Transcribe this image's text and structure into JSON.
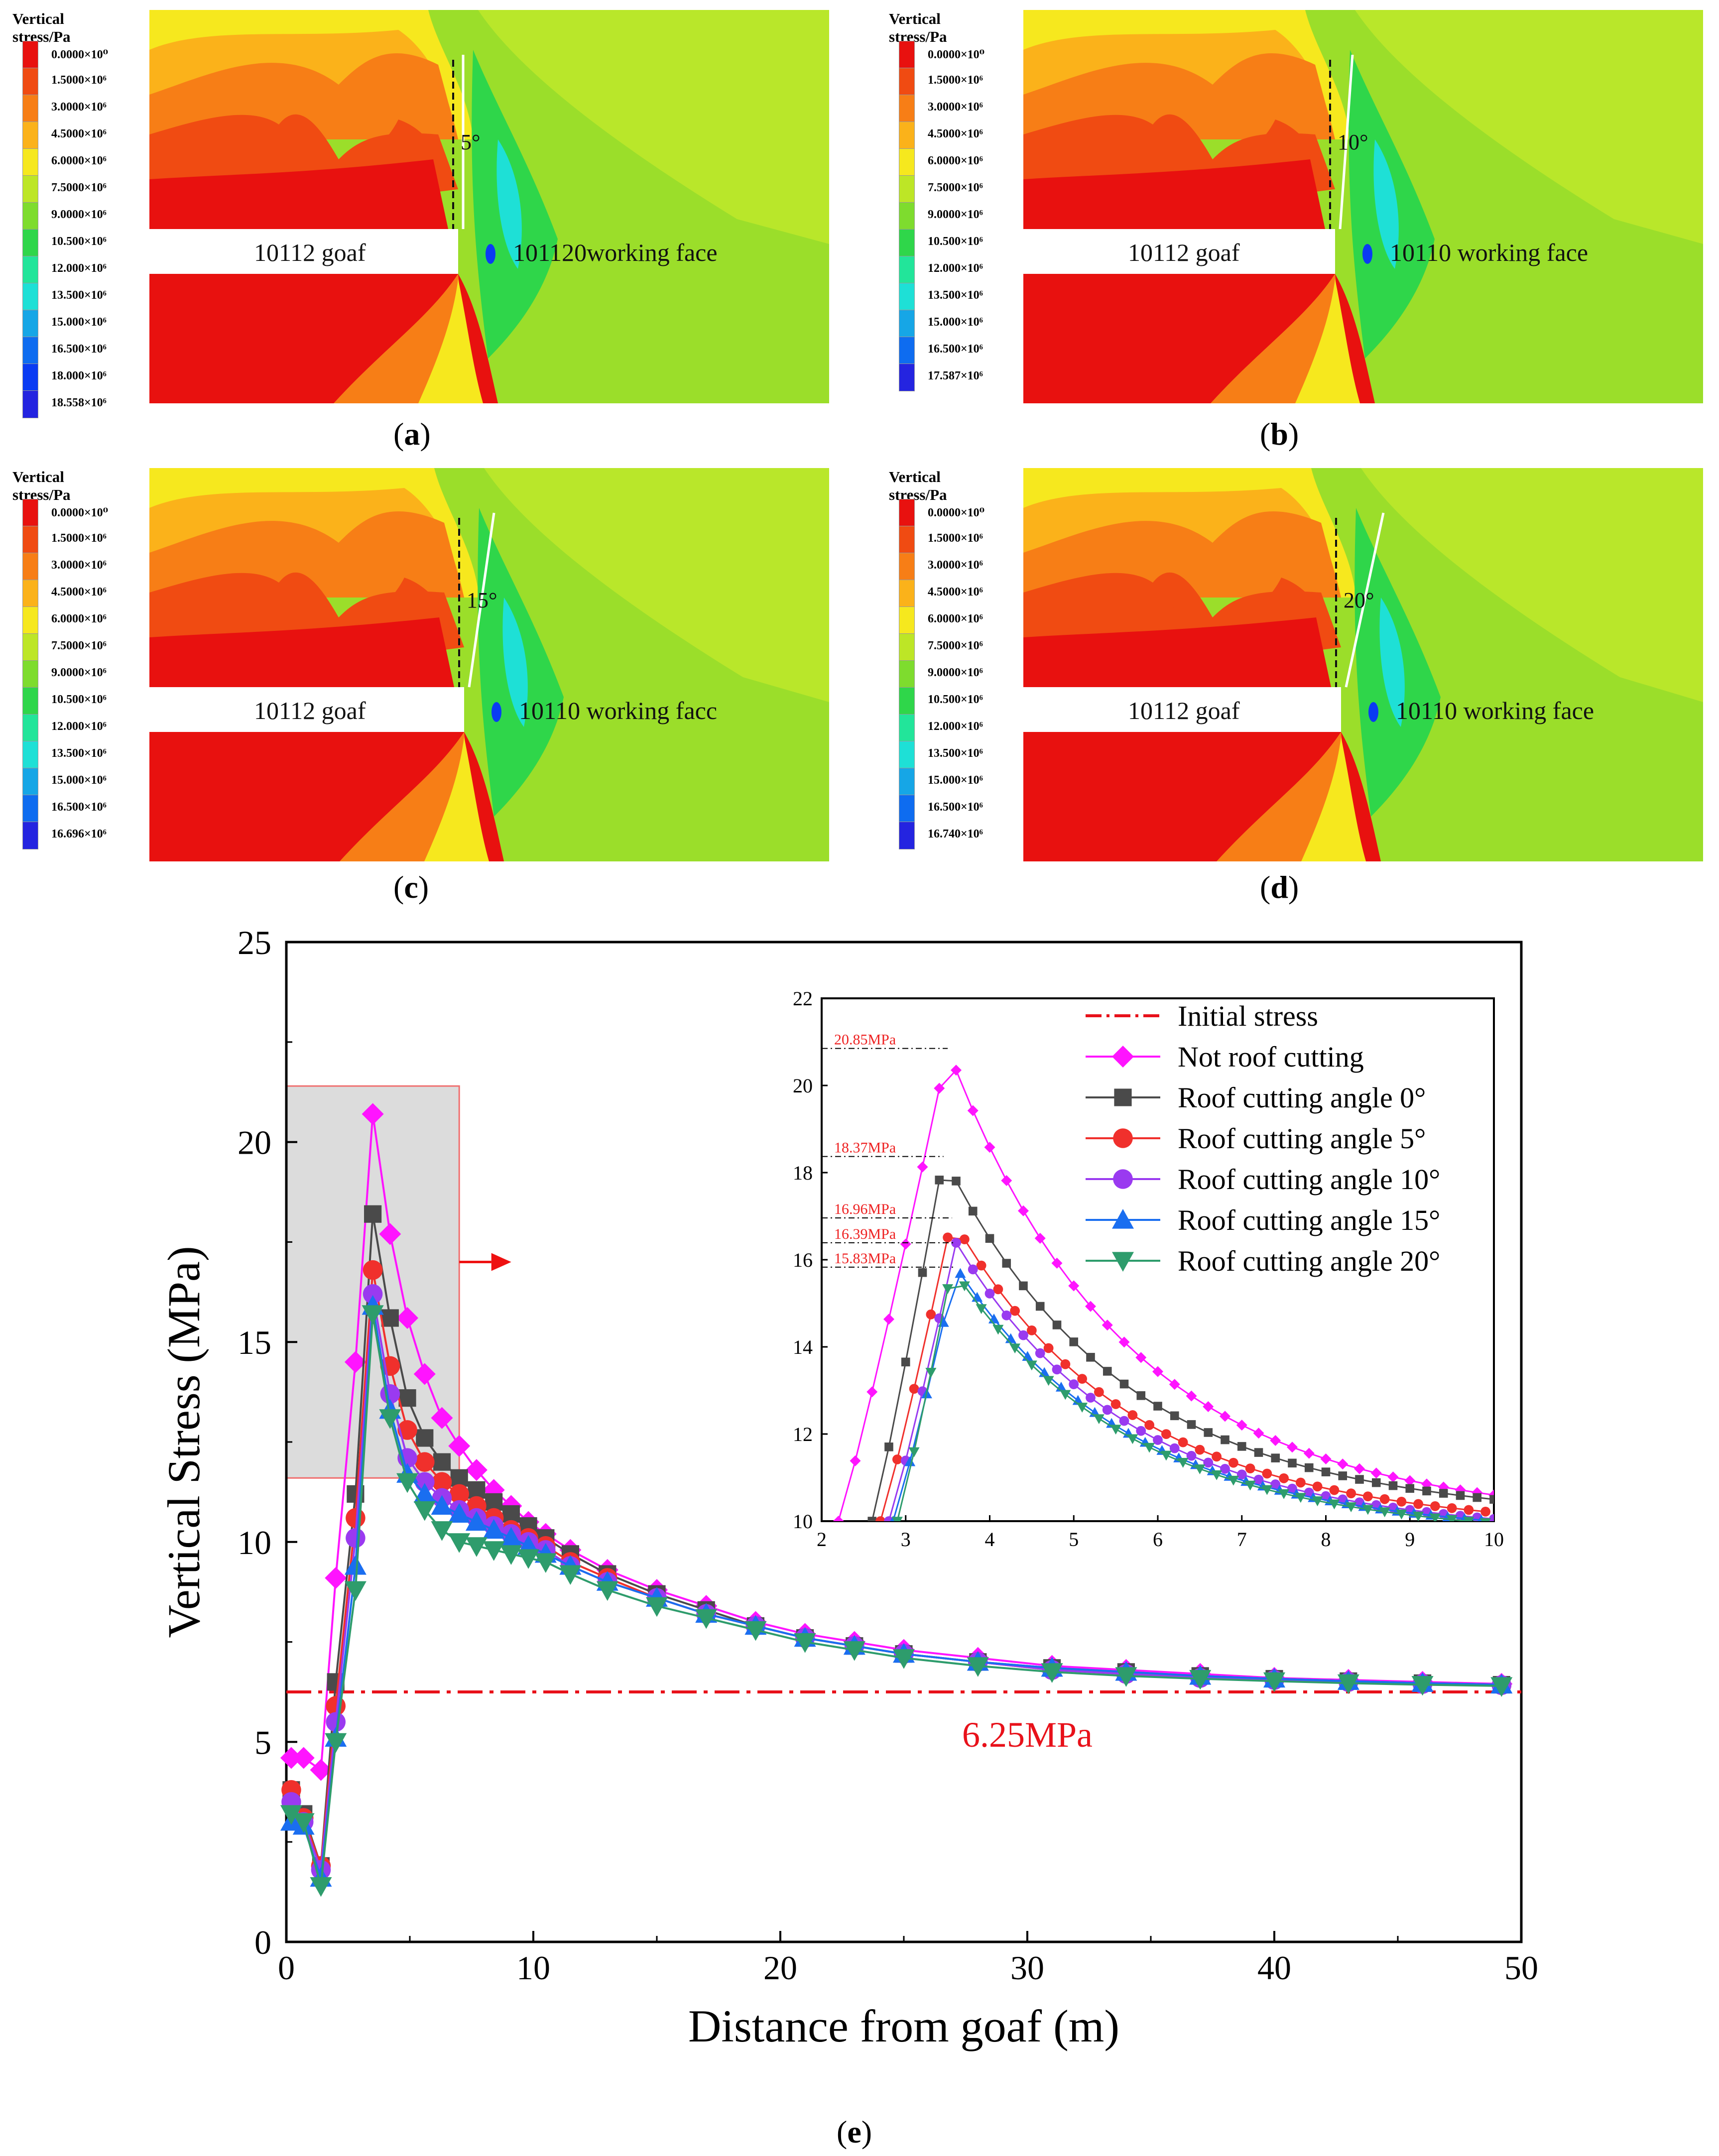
{
  "contour_panels": [
    {
      "caption": "a",
      "legend_title": "Vertical stress/Pa",
      "legend_labels": [
        "0.0000×10⁰",
        "1.5000×10⁶",
        "3.0000×10⁶",
        "4.5000×10⁶",
        "6.0000×10⁶",
        "7.5000×10⁶",
        "9.0000×10⁶",
        "10.500×10⁶",
        "12.000×10⁶",
        "13.500×10⁶",
        "15.000×10⁶",
        "16.500×10⁶",
        "18.000×10⁶",
        "18.558×10⁶"
      ],
      "goaf_label": "10112 goaf",
      "face_label": "101120working face",
      "angle_label": "5°"
    },
    {
      "caption": "b",
      "legend_title": "Vertical stress/Pa",
      "legend_labels": [
        "0.0000×10⁰",
        "1.5000×10⁶",
        "3.0000×10⁶",
        "4.5000×10⁶",
        "6.0000×10⁶",
        "7.5000×10⁶",
        "9.0000×10⁶",
        "10.500×10⁶",
        "12.000×10⁶",
        "13.500×10⁶",
        "15.000×10⁶",
        "16.500×10⁶",
        "17.587×10⁶"
      ],
      "goaf_label": "10112 goaf",
      "face_label": "10110 working face",
      "angle_label": "10°"
    },
    {
      "caption": "c",
      "legend_title": "Vertical stress/Pa",
      "legend_labels": [
        "0.0000×10⁰",
        "1.5000×10⁶",
        "3.0000×10⁶",
        "4.5000×10⁶",
        "6.0000×10⁶",
        "7.5000×10⁶",
        "9.0000×10⁶",
        "10.500×10⁶",
        "12.000×10⁶",
        "13.500×10⁶",
        "15.000×10⁶",
        "16.500×10⁶",
        "16.696×10⁶"
      ],
      "goaf_label": "10112 goaf",
      "face_label": "10110 working facc",
      "angle_label": "15°"
    },
    {
      "caption": "d",
      "legend_title": "Vertical stress/Pa",
      "legend_labels": [
        "0.0000×10⁰",
        "1.5000×10⁶",
        "3.0000×10⁶",
        "4.5000×10⁶",
        "6.0000×10⁶",
        "7.5000×10⁶",
        "9.0000×10⁶",
        "10.500×10⁶",
        "12.000×10⁶",
        "13.500×10⁶",
        "15.000×10⁶",
        "16.500×10⁶",
        "16.740×10⁶"
      ],
      "goaf_label": "10112 goaf",
      "face_label": "10110 working face",
      "angle_label": "20°"
    }
  ],
  "legend_colors": [
    "#e8110f",
    "#f04b12",
    "#f77e16",
    "#fbb21a",
    "#f6e81e",
    "#bde626",
    "#7edc2e",
    "#2fd64a",
    "#22e59a",
    "#1ee0d6",
    "#16a6e6",
    "#0e6cf0",
    "#0a3bf3",
    "#2424e0"
  ],
  "chart_data": {
    "type": "line",
    "caption": "e",
    "xlabel": "Distance from goaf (m)",
    "ylabel": "Vertical Stress (MPa)",
    "xlim": [
      0,
      50
    ],
    "ylim": [
      0,
      25
    ],
    "xticks": [
      "0",
      "10",
      "20",
      "30",
      "40",
      "50"
    ],
    "yticks": [
      "0",
      "5",
      "10",
      "15",
      "20",
      "25"
    ],
    "initial_stress": {
      "name": "Initial stress",
      "value": 6.25,
      "label": "6.25MPa",
      "color": "#e8111a"
    },
    "series": [
      {
        "name": "Not roof cutting",
        "color": "#ff14ff",
        "marker": "diamond",
        "x": [
          0.2,
          0.7,
          1.4,
          2,
          2.8,
          3.5,
          4.2,
          4.9,
          5.6,
          6.3,
          7,
          7.7,
          8.4,
          9.1,
          9.8,
          10.5,
          11.5,
          13,
          15,
          17,
          19,
          21,
          23,
          25,
          28,
          31,
          34,
          37,
          40,
          43,
          46,
          49.2
        ],
        "y": [
          4.6,
          4.6,
          4.3,
          9.1,
          14.5,
          20.7,
          17.7,
          15.6,
          14.2,
          13.1,
          12.4,
          11.8,
          11.3,
          10.9,
          10.5,
          10.2,
          9.8,
          9.3,
          8.8,
          8.4,
          8.0,
          7.7,
          7.5,
          7.3,
          7.1,
          6.9,
          6.8,
          6.7,
          6.6,
          6.55,
          6.5,
          6.45
        ]
      },
      {
        "name": "Roof cutting angle 0°",
        "color": "#4a4a4a",
        "marker": "square",
        "x": [
          0.2,
          0.7,
          1.4,
          2,
          2.8,
          3.5,
          4.2,
          4.9,
          5.6,
          6.3,
          7,
          7.7,
          8.4,
          9.1,
          9.8,
          10.5,
          11.5,
          13,
          15,
          17,
          19,
          21,
          23,
          25,
          28,
          31,
          34,
          37,
          40,
          43,
          46,
          49.2
        ],
        "y": [
          3.8,
          3.2,
          1.9,
          6.5,
          11.2,
          18.2,
          15.6,
          13.6,
          12.6,
          12.0,
          11.6,
          11.3,
          11.0,
          10.7,
          10.4,
          10.1,
          9.7,
          9.2,
          8.7,
          8.3,
          7.9,
          7.6,
          7.4,
          7.2,
          7.0,
          6.85,
          6.75,
          6.65,
          6.58,
          6.52,
          6.47,
          6.43
        ]
      },
      {
        "name": "Roof cutting angle 5°",
        "color": "#f0302c",
        "marker": "circle",
        "x": [
          0.2,
          0.7,
          1.4,
          2,
          2.8,
          3.5,
          4.2,
          4.9,
          5.6,
          6.3,
          7,
          7.7,
          8.4,
          9.1,
          9.8,
          10.5,
          11.5,
          13,
          15,
          17,
          19,
          21,
          23,
          25,
          28,
          31,
          34,
          37,
          40,
          43,
          46,
          49.2
        ],
        "y": [
          3.8,
          3.1,
          1.9,
          5.9,
          10.6,
          16.8,
          14.4,
          12.8,
          12.0,
          11.5,
          11.2,
          10.9,
          10.6,
          10.3,
          10.1,
          9.9,
          9.5,
          9.1,
          8.6,
          8.2,
          7.9,
          7.6,
          7.4,
          7.2,
          7.0,
          6.8,
          6.7,
          6.6,
          6.55,
          6.5,
          6.45,
          6.42
        ]
      },
      {
        "name": "Roof cutting angle 10°",
        "color": "#9a3af0",
        "marker": "circle",
        "x": [
          0.2,
          0.7,
          1.4,
          2,
          2.8,
          3.5,
          4.2,
          4.9,
          5.6,
          6.3,
          7,
          7.7,
          8.4,
          9.1,
          9.8,
          10.5,
          11.5,
          13,
          15,
          17,
          19,
          21,
          23,
          25,
          28,
          31,
          34,
          37,
          40,
          43,
          46,
          49.2
        ],
        "y": [
          3.5,
          3.0,
          1.8,
          5.5,
          10.1,
          16.2,
          13.7,
          12.1,
          11.5,
          11.1,
          10.8,
          10.6,
          10.4,
          10.2,
          10.0,
          9.8,
          9.4,
          9.0,
          8.6,
          8.2,
          7.9,
          7.6,
          7.4,
          7.2,
          7.0,
          6.8,
          6.7,
          6.6,
          6.55,
          6.5,
          6.45,
          6.42
        ]
      },
      {
        "name": "Roof cutting angle 15°",
        "color": "#1a6ef0",
        "marker": "triangle-up",
        "x": [
          0.2,
          0.7,
          1.4,
          2,
          2.8,
          3.5,
          4.2,
          4.9,
          5.6,
          6.3,
          7,
          7.7,
          8.4,
          9.1,
          9.8,
          10.5,
          11.5,
          13,
          15,
          17,
          19,
          21,
          23,
          25,
          28,
          31,
          34,
          37,
          40,
          43,
          46,
          49.2
        ],
        "y": [
          3.0,
          2.9,
          1.6,
          5.1,
          9.4,
          15.9,
          13.3,
          11.7,
          11.2,
          10.9,
          10.7,
          10.5,
          10.3,
          10.1,
          9.9,
          9.7,
          9.4,
          9.0,
          8.6,
          8.2,
          7.9,
          7.6,
          7.4,
          7.2,
          7.0,
          6.85,
          6.75,
          6.65,
          6.58,
          6.52,
          6.47,
          6.43
        ]
      },
      {
        "name": "Roof cutting angle 20°",
        "color": "#2e9c6c",
        "marker": "triangle-down",
        "x": [
          0.2,
          0.7,
          1.4,
          2,
          2.8,
          3.5,
          4.2,
          4.9,
          5.6,
          6.3,
          7,
          7.7,
          8.4,
          9.1,
          9.8,
          10.5,
          11.5,
          13,
          15,
          17,
          19,
          21,
          23,
          25,
          28,
          31,
          34,
          37,
          40,
          43,
          46,
          49.2
        ],
        "y": [
          3.2,
          3.0,
          1.4,
          5.0,
          8.8,
          15.7,
          13.1,
          11.5,
          10.8,
          10.3,
          10.0,
          9.9,
          9.8,
          9.7,
          9.6,
          9.5,
          9.2,
          8.8,
          8.4,
          8.1,
          7.8,
          7.5,
          7.3,
          7.1,
          6.9,
          6.75,
          6.65,
          6.58,
          6.52,
          6.47,
          6.43,
          6.4
        ]
      }
    ],
    "inset": {
      "xlim": [
        2,
        10
      ],
      "ylim": [
        10,
        22
      ],
      "xticks": [
        "2",
        "3",
        "4",
        "5",
        "6",
        "7",
        "8",
        "9",
        "10"
      ],
      "yticks": [
        "10",
        "12",
        "14",
        "16",
        "18",
        "20",
        "22"
      ],
      "peak_labels": [
        "20.85MPa",
        "18.37MPa",
        "16.96MPa",
        "16.39MPa",
        "15.83MPa"
      ],
      "peak_values": [
        20.85,
        18.37,
        16.96,
        16.39,
        15.83
      ]
    }
  }
}
